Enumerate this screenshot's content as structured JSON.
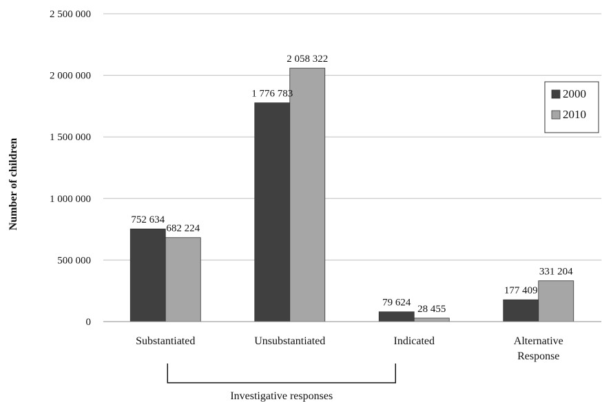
{
  "chart_data": {
    "type": "bar",
    "title": "",
    "xlabel": "",
    "ylabel": "Number of children",
    "ylim": [
      0,
      2500000
    ],
    "yticks": [
      0,
      500000,
      1000000,
      1500000,
      2000000,
      2500000
    ],
    "ytick_labels": [
      "0",
      "500 000",
      "1 000 000",
      "1 500 000",
      "2 000 000",
      "2 500 000"
    ],
    "grid": true,
    "legend_position": "top-right",
    "categories": [
      "Substantiated",
      "Unsubstantiated",
      "Indicated",
      "Alternative Response"
    ],
    "category_label_lines": [
      [
        "Substantiated"
      ],
      [
        "Unsubstantiated"
      ],
      [
        "Indicated"
      ],
      [
        "Alternative",
        "Response"
      ]
    ],
    "series": [
      {
        "name": "2000",
        "color": "#404040",
        "values": [
          752634,
          1776783,
          79624,
          177409
        ],
        "labels": [
          "752 634",
          "1 776 783",
          "79 624",
          "177 409"
        ]
      },
      {
        "name": "2010",
        "color": "#a6a6a6",
        "values": [
          682224,
          2058322,
          28455,
          331204
        ],
        "labels": [
          "682 224",
          "2 058 322",
          "28 455",
          "331 204"
        ]
      }
    ],
    "bracket": {
      "label": "Investigative responses",
      "spans_categories": [
        "Substantiated",
        "Unsubstantiated",
        "Indicated"
      ]
    }
  }
}
